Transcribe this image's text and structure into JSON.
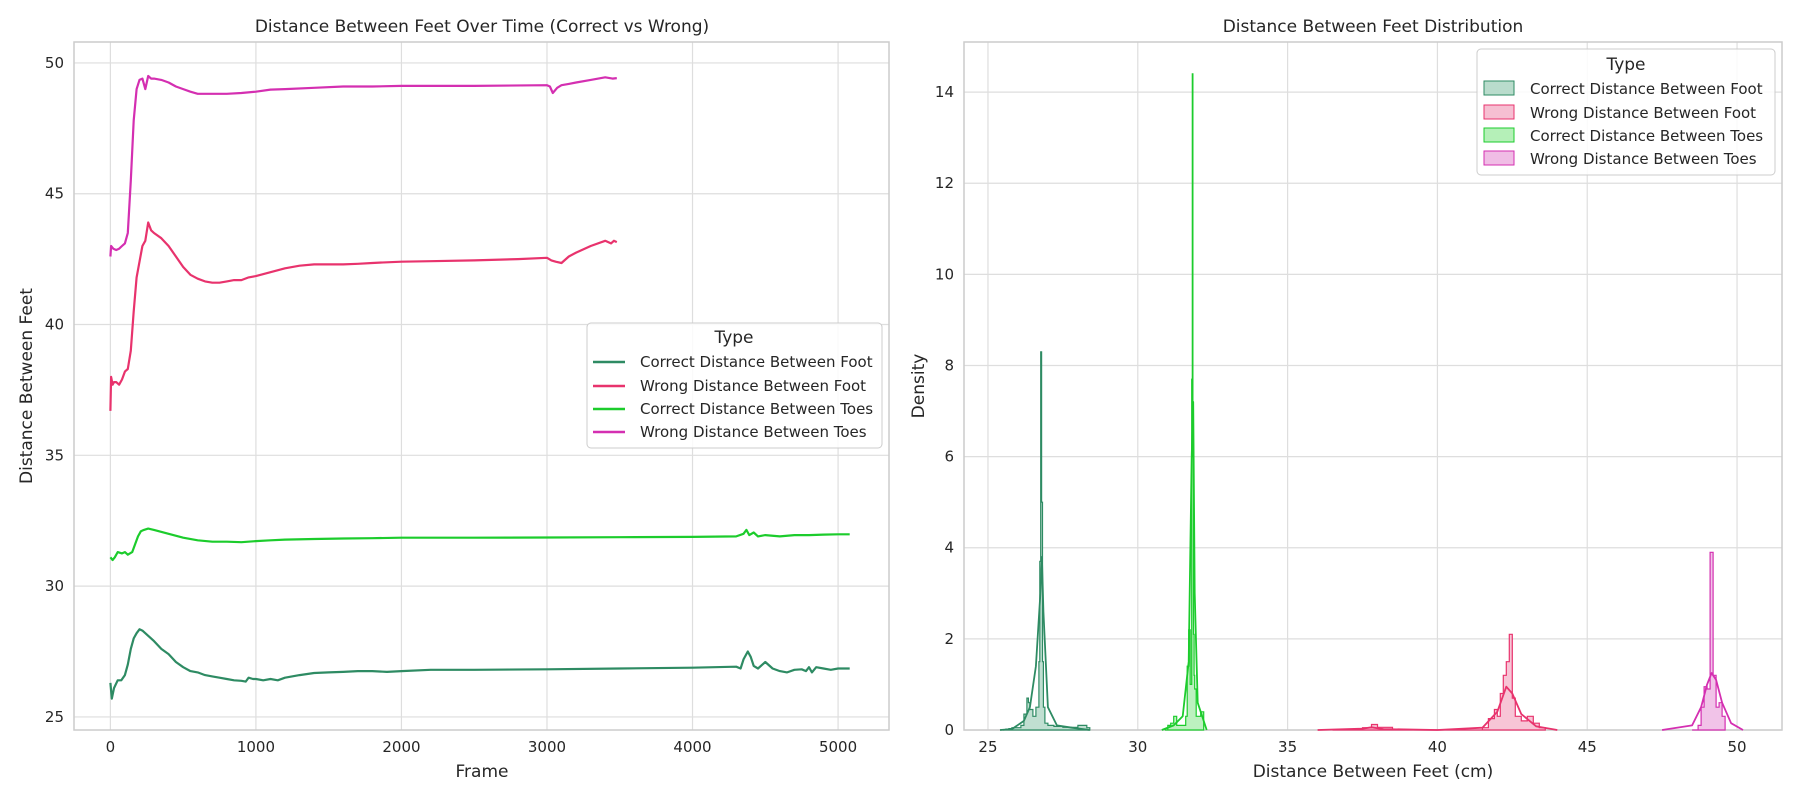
{
  "chart_data": [
    {
      "type": "line",
      "title": "Distance Between Feet Over Time (Correct vs Wrong)",
      "xlabel": "Frame",
      "ylabel": "Distance Between Feet",
      "xlim": [
        -250,
        5350
      ],
      "ylim": [
        24.5,
        50.8
      ],
      "xticks": [
        0,
        1000,
        2000,
        3000,
        4000,
        5000
      ],
      "yticks": [
        25,
        30,
        35,
        40,
        45,
        50
      ],
      "grid": true,
      "legend": {
        "title": "Type",
        "placement": "center-right",
        "entries": [
          "Correct Distance Between Foot",
          "Wrong Distance Between Foot",
          "Correct Distance Between Toes",
          "Wrong Distance Between Toes"
        ]
      },
      "series": [
        {
          "name": "Correct Distance Between Foot",
          "color": "#2e8b63",
          "x": [
            0,
            10,
            25,
            50,
            75,
            100,
            120,
            140,
            160,
            180,
            200,
            220,
            240,
            260,
            300,
            350,
            400,
            450,
            500,
            550,
            600,
            650,
            700,
            750,
            800,
            850,
            900,
            930,
            950,
            980,
            1000,
            1050,
            1100,
            1150,
            1200,
            1300,
            1400,
            1500,
            1600,
            1700,
            1800,
            1900,
            2000,
            2200,
            2500,
            3000,
            3500,
            4000,
            4300,
            4330,
            4350,
            4380,
            4400,
            4420,
            4450,
            4480,
            4500,
            4550,
            4600,
            4650,
            4700,
            4750,
            4780,
            4800,
            4820,
            4850,
            4900,
            4950,
            5000,
            5050,
            5080
          ],
          "values": [
            26.3,
            25.7,
            26.1,
            26.4,
            26.4,
            26.6,
            27.0,
            27.6,
            28.0,
            28.2,
            28.35,
            28.3,
            28.2,
            28.1,
            27.9,
            27.6,
            27.4,
            27.1,
            26.9,
            26.75,
            26.7,
            26.6,
            26.55,
            26.5,
            26.45,
            26.4,
            26.38,
            26.35,
            26.5,
            26.45,
            26.45,
            26.4,
            26.45,
            26.4,
            26.5,
            26.6,
            26.68,
            26.7,
            26.72,
            26.75,
            26.75,
            26.72,
            26.75,
            26.8,
            26.8,
            26.82,
            26.85,
            26.88,
            26.92,
            26.85,
            27.2,
            27.5,
            27.3,
            26.95,
            26.85,
            27.0,
            27.1,
            26.85,
            26.75,
            26.7,
            26.8,
            26.82,
            26.75,
            26.9,
            26.7,
            26.9,
            26.85,
            26.8,
            26.85,
            26.85,
            26.85
          ]
        },
        {
          "name": "Wrong Distance Between Foot",
          "color": "#e8336d",
          "x": [
            0,
            5,
            15,
            25,
            40,
            60,
            80,
            100,
            120,
            140,
            160,
            180,
            200,
            220,
            240,
            260,
            280,
            300,
            350,
            400,
            450,
            500,
            550,
            600,
            650,
            700,
            750,
            800,
            850,
            900,
            950,
            1000,
            1100,
            1200,
            1300,
            1400,
            1500,
            1600,
            1700,
            1800,
            1900,
            2000,
            2200,
            2500,
            2800,
            3000,
            3030,
            3060,
            3100,
            3150,
            3200,
            3300,
            3400,
            3440,
            3460,
            3480
          ],
          "values": [
            36.7,
            38.0,
            37.7,
            37.8,
            37.8,
            37.7,
            37.9,
            38.2,
            38.3,
            39.0,
            40.5,
            41.8,
            42.4,
            43.0,
            43.2,
            43.9,
            43.6,
            43.5,
            43.3,
            43.0,
            42.6,
            42.2,
            41.9,
            41.75,
            41.65,
            41.6,
            41.6,
            41.65,
            41.7,
            41.7,
            41.8,
            41.85,
            42.0,
            42.15,
            42.25,
            42.3,
            42.3,
            42.3,
            42.32,
            42.35,
            42.38,
            42.4,
            42.42,
            42.45,
            42.5,
            42.55,
            42.45,
            42.4,
            42.35,
            42.6,
            42.75,
            43.0,
            43.2,
            43.1,
            43.2,
            43.15
          ]
        },
        {
          "name": "Correct Distance Between Toes",
          "color": "#1ccc2c",
          "x": [
            0,
            15,
            30,
            50,
            80,
            100,
            120,
            150,
            170,
            190,
            210,
            230,
            260,
            300,
            400,
            500,
            600,
            700,
            800,
            900,
            1000,
            1100,
            1200,
            1400,
            1600,
            1800,
            2000,
            2500,
            3000,
            3500,
            4000,
            4300,
            4350,
            4370,
            4390,
            4420,
            4450,
            4500,
            4600,
            4700,
            4800,
            4900,
            5000,
            5080
          ],
          "values": [
            31.1,
            31.0,
            31.1,
            31.3,
            31.25,
            31.3,
            31.2,
            31.3,
            31.6,
            31.9,
            32.1,
            32.15,
            32.2,
            32.15,
            32.0,
            31.85,
            31.75,
            31.7,
            31.7,
            31.68,
            31.72,
            31.75,
            31.78,
            31.8,
            31.82,
            31.83,
            31.85,
            31.85,
            31.86,
            31.87,
            31.88,
            31.9,
            32.0,
            32.15,
            31.95,
            32.05,
            31.9,
            31.95,
            31.9,
            31.95,
            31.95,
            31.97,
            31.98,
            31.98
          ]
        },
        {
          "name": "Wrong Distance Between Toes",
          "color": "#d42fb1",
          "x": [
            0,
            5,
            20,
            40,
            60,
            80,
            100,
            120,
            140,
            160,
            180,
            200,
            220,
            240,
            260,
            280,
            300,
            350,
            400,
            450,
            500,
            550,
            600,
            650,
            700,
            800,
            900,
            1000,
            1100,
            1200,
            1400,
            1600,
            1800,
            2000,
            2500,
            3000,
            3020,
            3040,
            3070,
            3100,
            3150,
            3200,
            3300,
            3400,
            3450,
            3480
          ],
          "values": [
            42.6,
            43.0,
            42.9,
            42.85,
            42.9,
            43.0,
            43.1,
            43.5,
            45.5,
            47.8,
            49.0,
            49.35,
            49.4,
            49.0,
            49.5,
            49.4,
            49.4,
            49.35,
            49.25,
            49.1,
            49.0,
            48.9,
            48.82,
            48.82,
            48.82,
            48.82,
            48.85,
            48.9,
            48.98,
            49.0,
            49.05,
            49.1,
            49.1,
            49.12,
            49.12,
            49.15,
            49.1,
            48.85,
            49.05,
            49.15,
            49.2,
            49.25,
            49.35,
            49.45,
            49.4,
            49.42
          ]
        }
      ]
    },
    {
      "type": "area",
      "title": "Distance Between Feet Distribution",
      "xlabel": "Distance Between Feet (cm)",
      "ylabel": "Density",
      "xlim": [
        24.2,
        51.5
      ],
      "ylim": [
        0,
        15.1
      ],
      "xticks": [
        25,
        30,
        35,
        40,
        45,
        50
      ],
      "yticks": [
        0,
        2,
        4,
        6,
        8,
        10,
        12,
        14
      ],
      "grid": true,
      "legend": {
        "title": "Type",
        "placement": "top-right",
        "entries": [
          "Correct Distance Between Foot",
          "Wrong Distance Between Foot",
          "Correct Distance Between Toes",
          "Wrong Distance Between Toes"
        ]
      },
      "series": [
        {
          "name": "Correct Distance Between Foot",
          "color": "#2e8b63",
          "fill": "#b9dccc",
          "hist_x": [
            25.5,
            25.6,
            25.7,
            25.8,
            25.9,
            26.0,
            26.1,
            26.2,
            26.3,
            26.35,
            26.4,
            26.5,
            26.6,
            26.7,
            26.73,
            26.76,
            26.79,
            26.82,
            26.85,
            26.9,
            27.0,
            27.2,
            27.5,
            28.0,
            28.3,
            28.4
          ],
          "hist_y": [
            0.0,
            0.02,
            0.03,
            0.05,
            0.05,
            0.05,
            0.1,
            0.35,
            0.7,
            0.6,
            0.45,
            0.3,
            0.5,
            1.5,
            3.7,
            8.3,
            5.0,
            1.5,
            0.5,
            0.15,
            0.1,
            0.08,
            0.06,
            0.1,
            0.05,
            0.0
          ],
          "kde_x": [
            25.4,
            25.8,
            26.2,
            26.4,
            26.6,
            26.75,
            26.8,
            26.85,
            27.0,
            27.3,
            27.8,
            28.4
          ],
          "kde_y": [
            0.0,
            0.02,
            0.2,
            0.5,
            1.4,
            3.0,
            3.8,
            2.6,
            0.5,
            0.1,
            0.05,
            0.0
          ]
        },
        {
          "name": "Wrong Distance Between Foot",
          "color": "#e8336d",
          "fill": "#f6bfd2",
          "hist_x": [
            36.5,
            37.5,
            37.8,
            38.0,
            38.5,
            41.5,
            41.7,
            41.9,
            42.0,
            42.1,
            42.2,
            42.3,
            42.4,
            42.5,
            42.6,
            42.8,
            43.0,
            43.2,
            43.4,
            43.6
          ],
          "hist_y": [
            0.0,
            0.05,
            0.12,
            0.06,
            0.0,
            0.05,
            0.25,
            0.45,
            0.3,
            0.8,
            1.2,
            1.5,
            2.1,
            0.7,
            0.3,
            0.2,
            0.3,
            0.15,
            0.05,
            0.0
          ],
          "kde_x": [
            36.0,
            37.5,
            37.8,
            38.2,
            40.0,
            41.5,
            42.0,
            42.3,
            42.5,
            42.8,
            43.3,
            44.0
          ],
          "kde_y": [
            0.0,
            0.03,
            0.06,
            0.02,
            0.0,
            0.05,
            0.4,
            0.95,
            0.8,
            0.35,
            0.08,
            0.0
          ]
        },
        {
          "name": "Correct Distance Between Toes",
          "color": "#1ccc2c",
          "fill": "#b5f0b8",
          "hist_x": [
            30.9,
            31.0,
            31.1,
            31.2,
            31.3,
            31.5,
            31.6,
            31.65,
            31.7,
            31.75,
            31.8,
            31.82,
            31.84,
            31.86,
            31.88,
            31.9,
            31.95,
            32.0,
            32.1,
            32.2
          ],
          "hist_y": [
            0.0,
            0.1,
            0.15,
            0.3,
            0.1,
            0.1,
            0.3,
            1.4,
            2.2,
            1.0,
            7.7,
            14.4,
            6.0,
            2.1,
            1.2,
            0.9,
            0.3,
            0.3,
            0.4,
            0.0
          ],
          "kde_x": [
            30.8,
            31.2,
            31.5,
            31.7,
            31.8,
            31.85,
            31.9,
            32.0,
            32.3
          ],
          "kde_y": [
            0.0,
            0.1,
            0.3,
            1.5,
            6.0,
            7.2,
            3.0,
            0.6,
            0.0
          ]
        },
        {
          "name": "Wrong Distance Between Toes",
          "color": "#d42fb1",
          "fill": "#f0bde5",
          "hist_x": [
            48.5,
            48.7,
            48.8,
            48.9,
            49.0,
            49.1,
            49.2,
            49.3,
            49.4,
            49.5,
            49.6
          ],
          "hist_y": [
            0.0,
            0.1,
            0.5,
            0.95,
            0.9,
            3.9,
            1.2,
            0.5,
            0.6,
            0.3,
            0.0
          ],
          "kde_x": [
            47.5,
            48.5,
            48.8,
            49.0,
            49.15,
            49.3,
            49.5,
            49.8,
            50.2
          ],
          "kde_y": [
            0.0,
            0.1,
            0.5,
            1.0,
            1.25,
            1.1,
            0.6,
            0.15,
            0.0
          ]
        }
      ]
    }
  ]
}
